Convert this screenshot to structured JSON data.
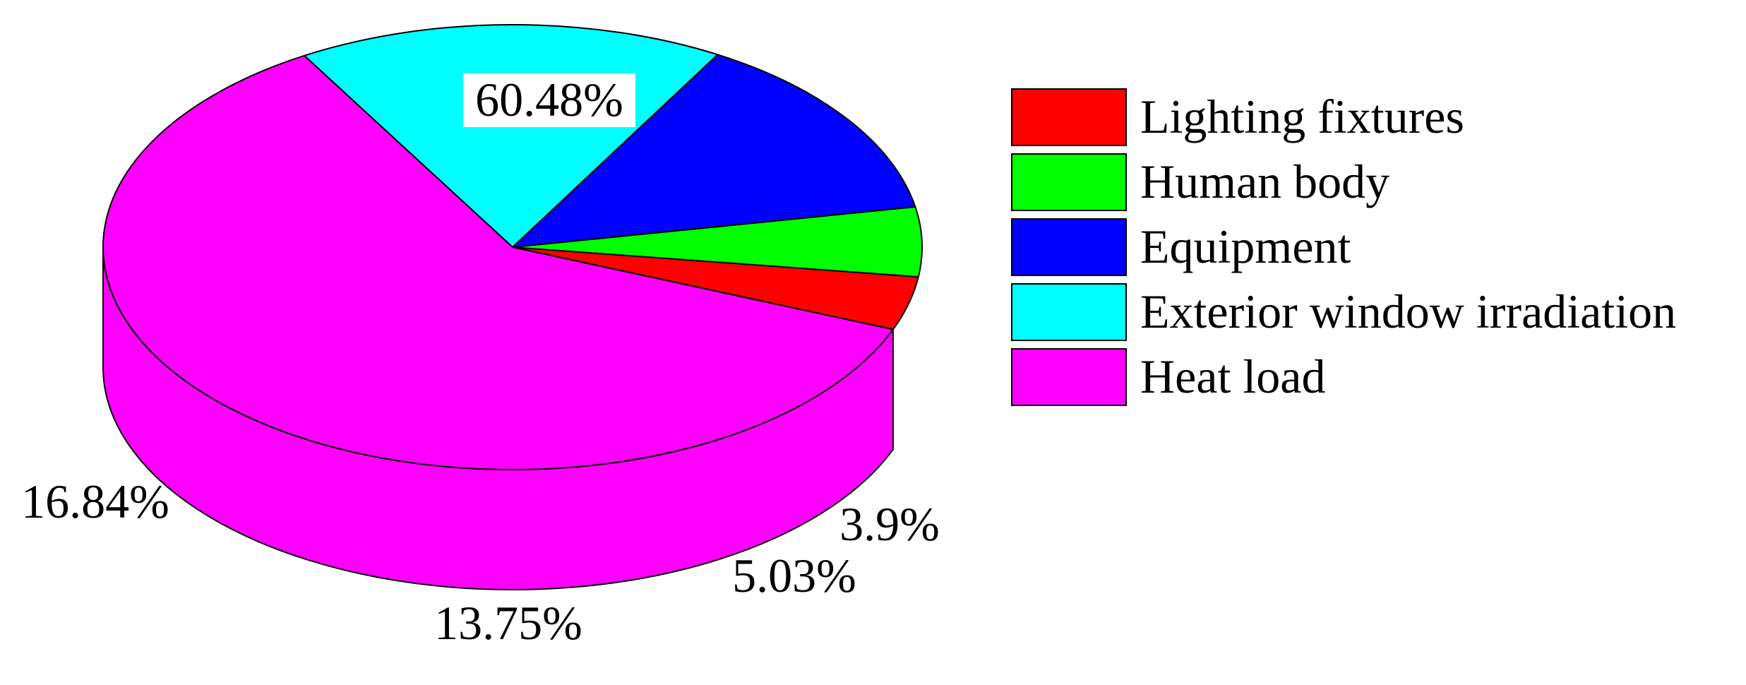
{
  "chart_data": {
    "type": "pie",
    "style": "3d",
    "title": "",
    "slices": [
      {
        "name": "Lighting fixtures",
        "value": 3.9,
        "label": "3.9%",
        "color": "#ff0000"
      },
      {
        "name": "Human body",
        "value": 5.03,
        "label": "5.03%",
        "color": "#00ff00"
      },
      {
        "name": "Equipment",
        "value": 13.75,
        "label": "13.75%",
        "color": "#0000ff"
      },
      {
        "name": "Exterior window irradiation",
        "value": 16.84,
        "label": "16.84%",
        "color": "#00ffff"
      },
      {
        "name": "Heat load",
        "value": 60.48,
        "label": "60.48%",
        "color": "#ff00ff"
      }
    ],
    "legend": {
      "position": "right",
      "entries": [
        "Lighting fixtures",
        "Human body",
        "Equipment",
        "Exterior window irradiation",
        "Heat load"
      ]
    }
  }
}
